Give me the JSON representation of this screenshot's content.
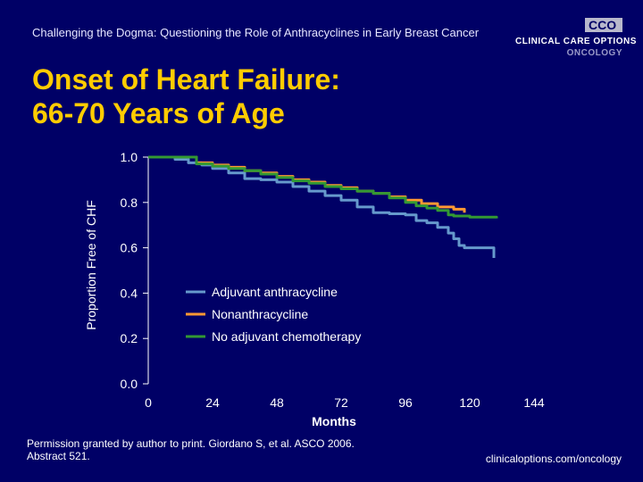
{
  "header": {
    "subtitle": "Challenging the Dogma: Questioning the Role of Anthracyclines in Early Breast Cancer"
  },
  "logo": {
    "mark": "CCO",
    "line1": "CLINICAL CARE OPTIONS",
    "line2": "ONCOLOGY"
  },
  "slide": {
    "title_line1": "Onset of Heart Failure:",
    "title_line2": "66-70 Years of Age"
  },
  "footer": {
    "permission_line1": "Permission granted by author  to print. Giordano S, et al. ASCO 2006.",
    "permission_line2": "Abstract 521.",
    "website": "clinicaloptions.com/oncology"
  },
  "colors": {
    "background": "#000066",
    "title": "#ffcc00",
    "axis": "#ffffff",
    "adjuvant": "#6699cc",
    "nonanthra": "#ff9933",
    "noadjuvant": "#339933"
  },
  "chart_data": {
    "type": "line",
    "title": "",
    "xlabel": "Months",
    "ylabel": "Proportion Free of CHF",
    "xlim": [
      0,
      144
    ],
    "ylim": [
      0,
      1.0
    ],
    "x_ticks": [
      0,
      24,
      48,
      72,
      96,
      120,
      144
    ],
    "x_tick_labels": [
      "0",
      "24",
      "48",
      "72",
      "96",
      "120",
      "144"
    ],
    "y_ticks": [
      0.0,
      0.2,
      0.4,
      0.6,
      0.8,
      1.0
    ],
    "y_tick_labels": [
      "0.0",
      "0.2",
      "0.4",
      "0.6",
      "0.8",
      "1.0"
    ],
    "legend_position": "center",
    "series": [
      {
        "name": "Adjuvant anthracycline",
        "color": "#6699cc",
        "x": [
          0,
          7,
          10,
          15,
          20,
          24,
          30,
          36,
          42,
          48,
          54,
          60,
          66,
          72,
          78,
          84,
          90,
          96,
          100,
          104,
          108,
          112,
          114,
          116,
          118,
          120,
          124,
          128,
          129
        ],
        "y": [
          1.0,
          1.0,
          0.99,
          0.975,
          0.965,
          0.95,
          0.93,
          0.905,
          0.9,
          0.89,
          0.87,
          0.85,
          0.83,
          0.81,
          0.78,
          0.755,
          0.75,
          0.745,
          0.72,
          0.71,
          0.69,
          0.665,
          0.64,
          0.61,
          0.6,
          0.6,
          0.6,
          0.6,
          0.555
        ]
      },
      {
        "name": "Nonanthracycline",
        "color": "#ff9933",
        "x": [
          0,
          12,
          18,
          24,
          30,
          36,
          42,
          48,
          54,
          60,
          66,
          72,
          78,
          84,
          90,
          96,
          102,
          108,
          114,
          118
        ],
        "y": [
          1.0,
          1.0,
          0.975,
          0.965,
          0.955,
          0.94,
          0.93,
          0.915,
          0.9,
          0.89,
          0.875,
          0.865,
          0.85,
          0.84,
          0.825,
          0.81,
          0.795,
          0.78,
          0.77,
          0.755
        ]
      },
      {
        "name": "No adjuvant chemotherapy",
        "color": "#339933",
        "x": [
          0,
          12,
          18,
          24,
          30,
          36,
          42,
          48,
          54,
          60,
          66,
          72,
          78,
          84,
          90,
          96,
          100,
          104,
          108,
          112,
          114,
          120,
          126,
          130
        ],
        "y": [
          1.0,
          1.0,
          0.97,
          0.96,
          0.95,
          0.94,
          0.925,
          0.91,
          0.895,
          0.885,
          0.87,
          0.86,
          0.85,
          0.84,
          0.82,
          0.8,
          0.785,
          0.775,
          0.765,
          0.745,
          0.74,
          0.735,
          0.735,
          0.73
        ]
      }
    ]
  }
}
